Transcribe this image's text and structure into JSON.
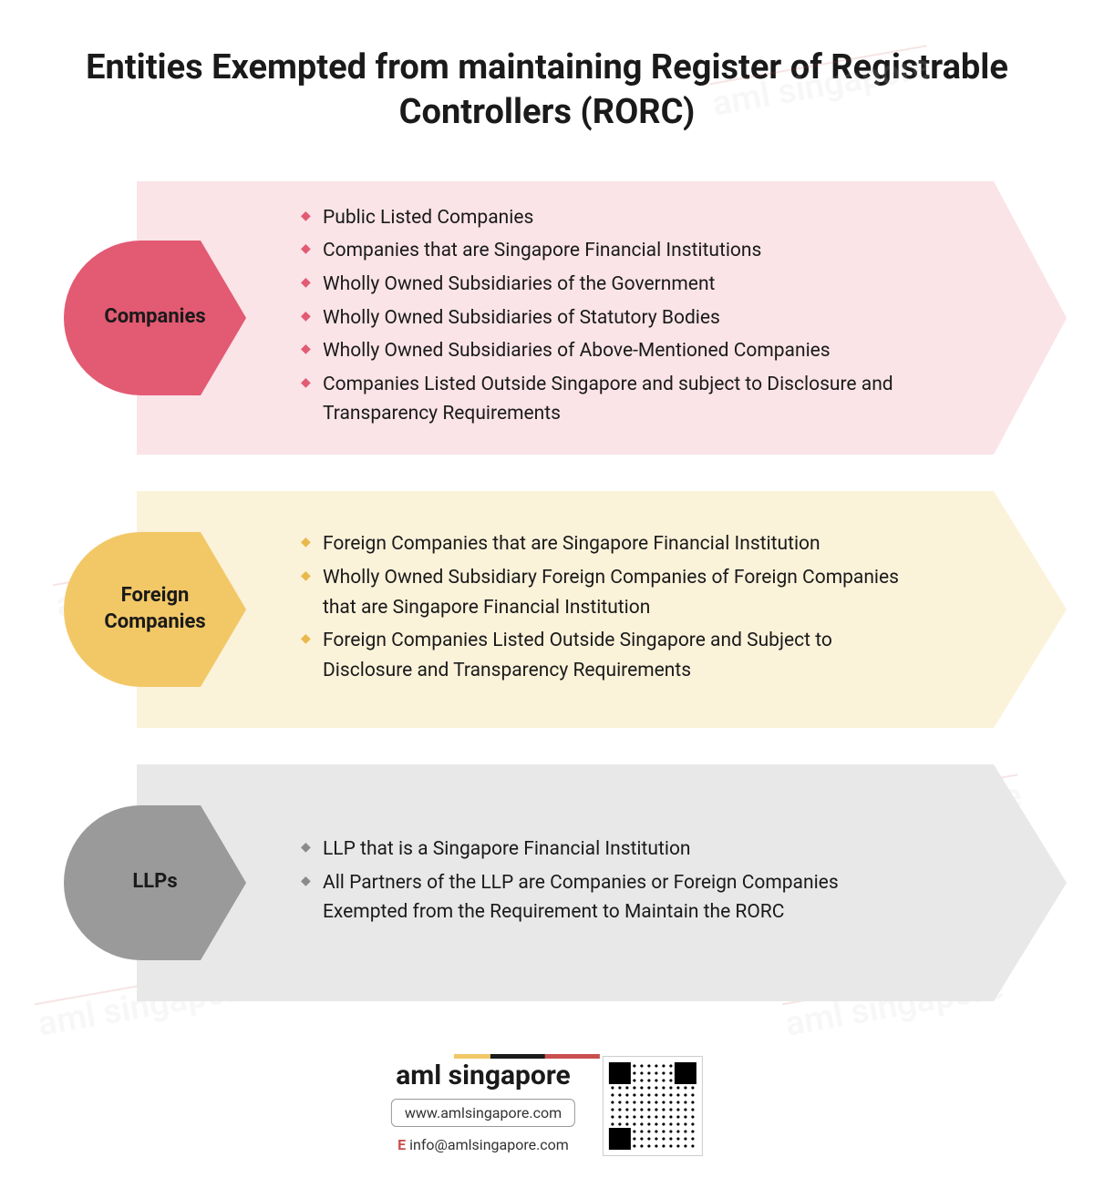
{
  "title": "Entities Exempted from maintaining Register of Registrable Controllers (RORC)",
  "watermark_text": "aml singapore",
  "sections": [
    {
      "label": "Companies",
      "badge_color": "#e35a73",
      "body_color": "#fae4e8",
      "bullet_color": "#e35a73",
      "items": [
        "Public Listed Companies",
        "Companies that are Singapore Financial Institutions",
        "Wholly Owned Subsidiaries of the Government",
        "Wholly Owned Subsidiaries of Statutory Bodies",
        "Wholly Owned Subsidiaries of Above-Mentioned Companies",
        "Companies Listed Outside Singapore and subject to Disclosure and Transparency Requirements"
      ]
    },
    {
      "label": "Foreign Companies",
      "badge_color": "#f2c867",
      "body_color": "#fbf2da",
      "bullet_color": "#e8b94a",
      "items": [
        "Foreign Companies that are Singapore Financial Institution",
        "Wholly Owned Subsidiary Foreign Companies of Foreign Companies that are Singapore Financial Institution",
        "Foreign Companies Listed Outside Singapore and Subject to Disclosure and Transparency Requirements"
      ]
    },
    {
      "label": "LLPs",
      "badge_color": "#9a9a9a",
      "body_color": "#e8e8e8",
      "bullet_color": "#8a8a8a",
      "items": [
        "LLP that is a Singapore Financial Institution",
        "All Partners of the LLP are Companies or Foreign Companies Exempted from the Requirement to Maintain the RORC"
      ]
    }
  ],
  "footer": {
    "logo_text": "aml singapore",
    "url": "www.amlsingapore.com",
    "email_prefix": "E",
    "email": "info@amlsingapore.com",
    "bar_colors": [
      "#f2c867",
      "#1a1a1a",
      "#c94f4f"
    ]
  }
}
